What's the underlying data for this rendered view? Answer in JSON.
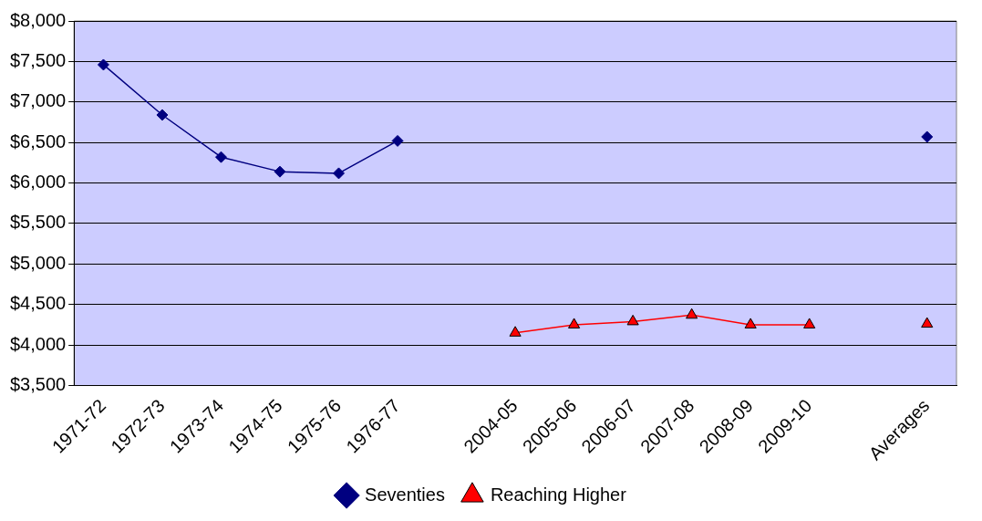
{
  "chart_data": {
    "type": "line",
    "categories": [
      "1971-72",
      "1972-73",
      "1973-74",
      "1974-75",
      "1975-76",
      "1976-77",
      null,
      "2004-05",
      "2005-06",
      "2006-07",
      "2007-08",
      "2008-09",
      "2009-10",
      null,
      "Averages"
    ],
    "series": [
      {
        "name": "Seventies",
        "color": "#000080",
        "marker": "diamond",
        "values": [
          7460,
          6840,
          6320,
          6140,
          6120,
          6520,
          null,
          null,
          null,
          null,
          null,
          null,
          null,
          null,
          6570
        ]
      },
      {
        "name": "Reaching Higher",
        "color": "#ff0000",
        "marker": "triangle",
        "values": [
          null,
          null,
          null,
          null,
          null,
          null,
          null,
          4150,
          4250,
          4290,
          4370,
          4250,
          4250,
          null,
          4260
        ]
      }
    ],
    "ylim": [
      3500,
      8000
    ],
    "yticks": [
      {
        "value": 3500,
        "label": "$3,500"
      },
      {
        "value": 4000,
        "label": "$4,000"
      },
      {
        "value": 4500,
        "label": "$4,500"
      },
      {
        "value": 5000,
        "label": "$5,000"
      },
      {
        "value": 5500,
        "label": "$5,500"
      },
      {
        "value": 6000,
        "label": "$6,000"
      },
      {
        "value": 6500,
        "label": "$6,500"
      },
      {
        "value": 7000,
        "label": "$7,000"
      },
      {
        "value": 7500,
        "label": "$7,500"
      },
      {
        "value": 8000,
        "label": "$8,000"
      }
    ],
    "grid": "y",
    "legend": "bottom",
    "line_style": "solid"
  }
}
